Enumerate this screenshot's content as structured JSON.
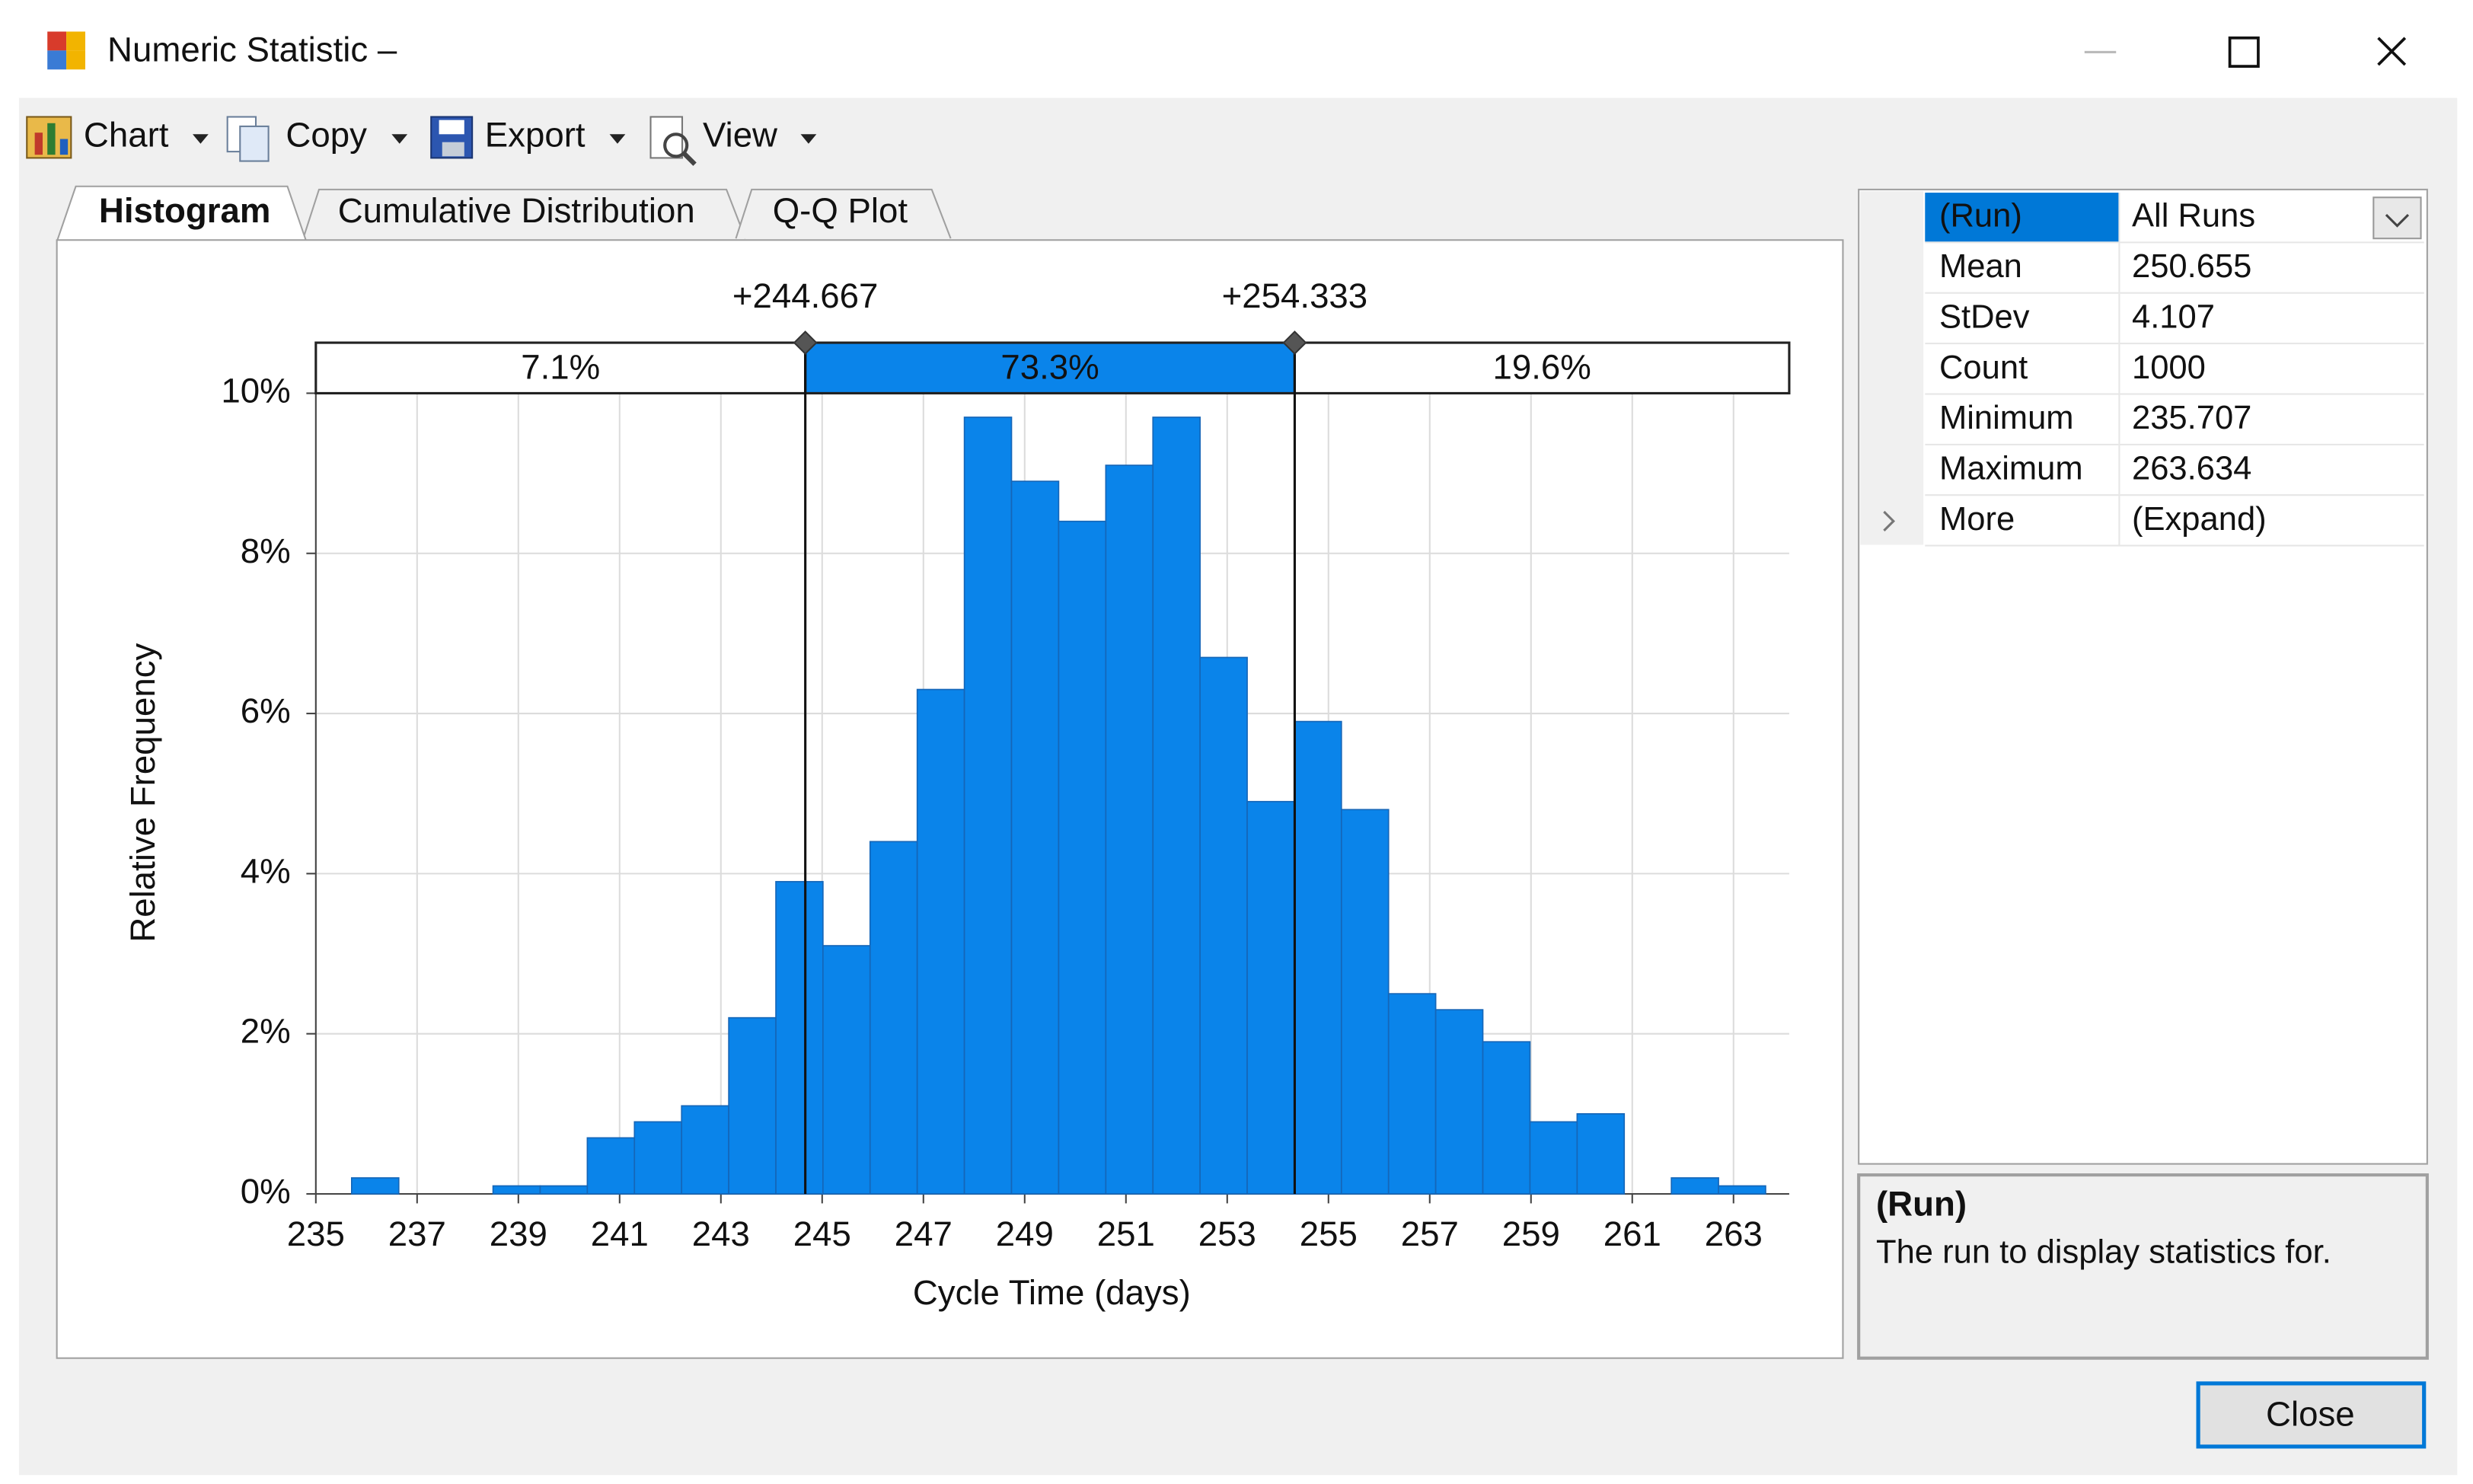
{
  "window": {
    "title": "Numeric Statistic –"
  },
  "toolbar": {
    "items": [
      "Chart",
      "Copy",
      "Export",
      "View"
    ]
  },
  "tabs": [
    "Histogram",
    "Cumulative Distribution",
    "Q-Q Plot"
  ],
  "chart_data": {
    "type": "histogram",
    "x_label": "Cycle Time (days)",
    "y_label": "Relative Frequency",
    "bins": [
      235.707,
      236.638,
      237.569,
      238.5,
      239.431,
      240.362,
      241.293,
      242.224,
      243.155,
      244.086,
      245.016,
      245.947,
      246.878,
      247.809,
      248.74,
      249.671,
      250.602,
      251.533,
      252.464,
      253.395,
      254.325,
      255.256,
      256.187,
      257.118,
      258.049,
      258.98,
      259.911,
      260.842,
      261.773,
      262.704,
      263.634
    ],
    "values": [
      0.2,
      0,
      0,
      0.1,
      0.1,
      0.7,
      0.9,
      1.1,
      2.2,
      3.9,
      3.1,
      4.4,
      6.3,
      9.7,
      8.9,
      8.4,
      9.1,
      9.7,
      6.7,
      4.9,
      5.9,
      4.8,
      2.5,
      2.3,
      1.9,
      0.9,
      1.0,
      0,
      0.2,
      0.1
    ],
    "color": "#0a84ea",
    "edge_color": "#1566b8",
    "xlim": [
      235,
      264.1
    ],
    "xticks": [
      235,
      237,
      239,
      241,
      243,
      245,
      247,
      249,
      251,
      253,
      255,
      257,
      259,
      261,
      263
    ],
    "ylim": [
      0,
      10
    ],
    "yticks": [
      {
        "value": 0,
        "label": "0%"
      },
      {
        "value": 2,
        "label": "2%"
      },
      {
        "value": 4,
        "label": "4%"
      },
      {
        "value": 6,
        "label": "6%"
      },
      {
        "value": 8,
        "label": "8%"
      },
      {
        "value": 10,
        "label": "10%"
      }
    ],
    "grid": true,
    "range_markers": [
      {
        "value": 244.667,
        "label": "+244.667"
      },
      {
        "value": 254.333,
        "label": "+254.333"
      }
    ],
    "range_shares": [
      7.1,
      73.3,
      19.6
    ],
    "range_share_labels": [
      "7.1%",
      "73.3%",
      "19.6%"
    ]
  },
  "properties": {
    "rows": [
      [
        "(Run)",
        "All Runs"
      ],
      [
        "Mean",
        "250.655"
      ],
      [
        "StDev",
        "4.107"
      ],
      [
        "Count",
        "1000"
      ],
      [
        "Minimum",
        "235.707"
      ],
      [
        "Maximum",
        "263.634"
      ],
      [
        "More",
        "(Expand)"
      ]
    ]
  },
  "description": {
    "title": "(Run)",
    "text": "The run to display statistics for."
  },
  "buttons": {
    "close": "Close"
  }
}
